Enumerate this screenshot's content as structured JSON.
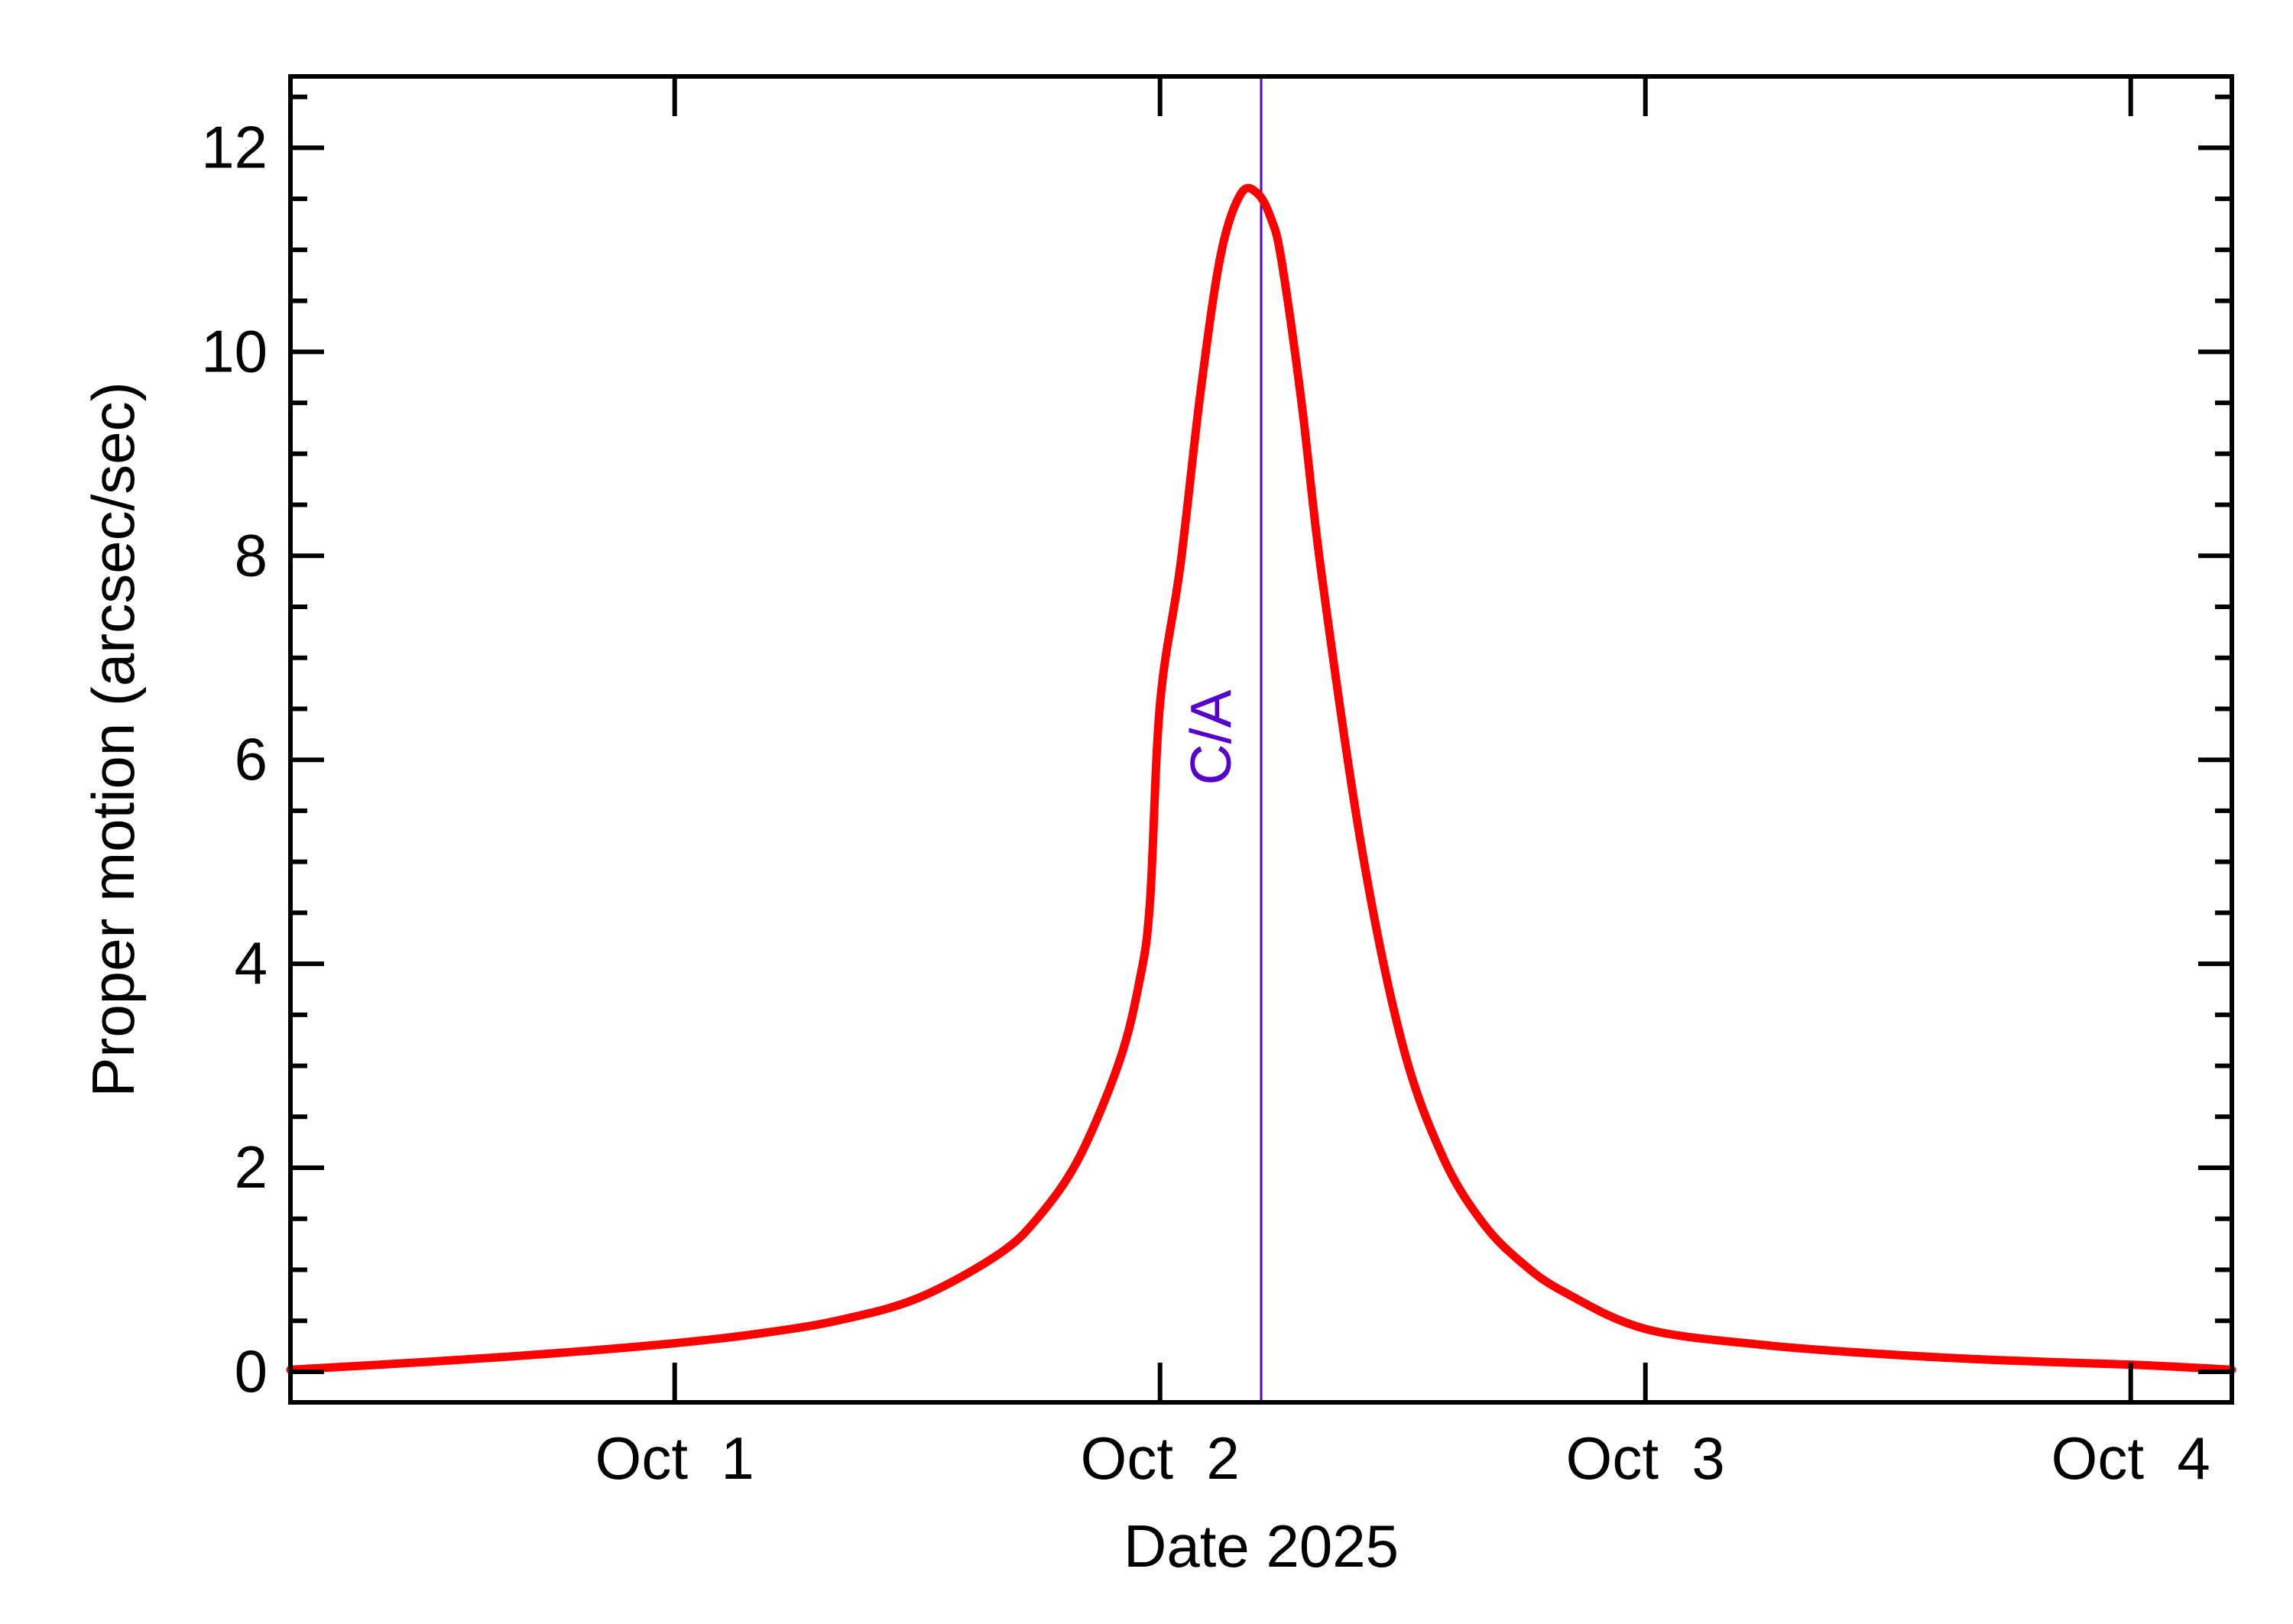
{
  "chart_data": {
    "type": "line",
    "title": "",
    "xlabel": "Date 2025",
    "ylabel": "Proper motion (arcsec/sec)",
    "xlim": [
      "2025-09-30T05:00",
      "2025-10-04T05:00"
    ],
    "ylim": [
      -0.3,
      12.7
    ],
    "x_ticks": [
      {
        "value": "2025-10-01T00:00",
        "label": "Oct  1"
      },
      {
        "value": "2025-10-02T00:00",
        "label": "Oct  2"
      },
      {
        "value": "2025-10-03T00:00",
        "label": "Oct  3"
      },
      {
        "value": "2025-10-04T00:00",
        "label": "Oct  4"
      }
    ],
    "y_ticks": [
      0,
      2,
      4,
      6,
      8,
      10,
      12
    ],
    "y_minor_step": 0.5,
    "x_minor_ticks_per_day": 0,
    "grid": false,
    "colors": {
      "series": "#ff0000",
      "closest_approach": "#5500cc",
      "axes": "#000000"
    },
    "series": [
      {
        "x": [
          "2025-09-30T05:00",
          "2025-09-30T12:00",
          "2025-09-30T18:00",
          "2025-10-01T00:00",
          "2025-10-01T04:00",
          "2025-10-01T08:00",
          "2025-10-01T12:00",
          "2025-10-01T16:00",
          "2025-10-01T18:00",
          "2025-10-01T20:00",
          "2025-10-01T22:00",
          "2025-10-01T23:00",
          "2025-10-01T23:30",
          "2025-10-02T00:00",
          "2025-10-02T01:00",
          "2025-10-02T02:00",
          "2025-10-02T03:00",
          "2025-10-02T04:00",
          "2025-10-02T04:50",
          "2025-10-02T05:30",
          "2025-10-02T06:00",
          "2025-10-02T07:00",
          "2025-10-02T08:00",
          "2025-10-02T10:00",
          "2025-10-02T12:00",
          "2025-10-02T14:00",
          "2025-10-02T16:00",
          "2025-10-02T18:00",
          "2025-10-02T20:00",
          "2025-10-03T00:00",
          "2025-10-03T06:00",
          "2025-10-03T12:00",
          "2025-10-03T18:00",
          "2025-10-04T00:00",
          "2025-10-04T05:00"
        ],
        "y": [
          0.02,
          0.1,
          0.18,
          0.28,
          0.37,
          0.5,
          0.72,
          1.15,
          1.52,
          2.1,
          3.05,
          3.85,
          4.6,
          6.55,
          7.9,
          9.6,
          10.95,
          11.55,
          11.55,
          11.3,
          10.9,
          9.5,
          7.8,
          5.1,
          3.2,
          2.1,
          1.45,
          1.05,
          0.78,
          0.42,
          0.26,
          0.17,
          0.11,
          0.07,
          0.02
        ]
      }
    ],
    "annotations": [
      {
        "label": "C/A",
        "x": "2025-10-02T05:00",
        "orientation": "vertical"
      }
    ]
  }
}
